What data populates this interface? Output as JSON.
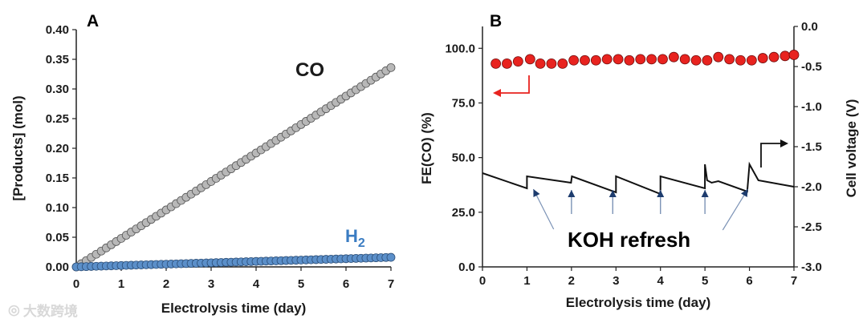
{
  "watermark": "大数跨境",
  "chart_data": [
    {
      "panel": "A",
      "type": "scatter",
      "xlabel": "Electrolysis time (day)",
      "ylabel": "[Products] (mol)",
      "xlim": [
        0,
        7
      ],
      "ylim": [
        0,
        0.4
      ],
      "xticks": [
        "0",
        "1",
        "2",
        "3",
        "4",
        "5",
        "6",
        "7"
      ],
      "yticks": [
        "0.00",
        "0.05",
        "0.10",
        "0.15",
        "0.20",
        "0.25",
        "0.30",
        "0.35",
        "0.40"
      ],
      "series": [
        {
          "name": "CO",
          "label": "CO",
          "slope": 0.048,
          "color": "#b8b8b8",
          "x_start": 0,
          "x_end": 7,
          "n_points": 64
        },
        {
          "name": "H2",
          "label_main": "H",
          "label_sub": "2",
          "slope": 0.0023,
          "color": "#5b8fc9",
          "x_start": 0,
          "x_end": 7,
          "n_points": 64
        }
      ]
    },
    {
      "panel": "B",
      "type": "scatter+line",
      "xlabel": "Electrolysis time (day)",
      "ylabel_left": "FE(CO) (%)",
      "ylabel_right": "Cell voltage (V)",
      "xlim": [
        0,
        7
      ],
      "ylim_left": [
        0,
        110
      ],
      "ylim_right": [
        -3.0,
        0.0
      ],
      "xticks": [
        "0",
        "1",
        "2",
        "3",
        "4",
        "5",
        "6",
        "7"
      ],
      "yticks_left": [
        "0.0",
        "25.0",
        "50.0",
        "75.0",
        "100.0"
      ],
      "yticks_right": [
        "0.0",
        "-0.5",
        "-1.0",
        "-1.5",
        "-2.0",
        "-2.5",
        "-3.0"
      ],
      "fe_co": {
        "x": [
          0.3,
          0.55,
          0.8,
          1.07,
          1.3,
          1.55,
          1.8,
          2.05,
          2.3,
          2.55,
          2.8,
          3.05,
          3.3,
          3.55,
          3.8,
          4.05,
          4.3,
          4.55,
          4.8,
          5.05,
          5.3,
          5.55,
          5.8,
          6.05,
          6.3,
          6.55,
          6.8,
          7.0
        ],
        "y": [
          93,
          93,
          94,
          95,
          93,
          93,
          93,
          94.5,
          94.5,
          94.5,
          95,
          95,
          94.5,
          95,
          95,
          95,
          96,
          95,
          94.5,
          94.5,
          96,
          95,
          94.5,
          94.5,
          95.5,
          96,
          96.5,
          97
        ]
      },
      "cell_voltage": {
        "segments": [
          [
            [
              0.0,
              -1.83
            ],
            [
              1.0,
              -2.02
            ]
          ],
          [
            [
              1.0,
              -1.87
            ],
            [
              1.99,
              -1.95
            ]
          ],
          [
            [
              2.01,
              -1.87
            ],
            [
              3.0,
              -2.07
            ]
          ],
          [
            [
              3.0,
              -1.87
            ],
            [
              4.0,
              -2.09
            ]
          ],
          [
            [
              4.0,
              -1.87
            ],
            [
              5.0,
              -2.02
            ]
          ],
          [
            [
              5.0,
              -1.72
            ],
            [
              5.05,
              -1.92
            ],
            [
              5.15,
              -1.95
            ],
            [
              5.3,
              -1.93
            ],
            [
              5.95,
              -2.06
            ]
          ],
          [
            [
              6.0,
              -1.72
            ],
            [
              6.2,
              -1.92
            ],
            [
              7.0,
              -2.0
            ]
          ]
        ]
      },
      "annotations": {
        "koh_label": "KOH refresh",
        "refresh_days": [
          1,
          2,
          3,
          4,
          5,
          6
        ]
      }
    }
  ]
}
